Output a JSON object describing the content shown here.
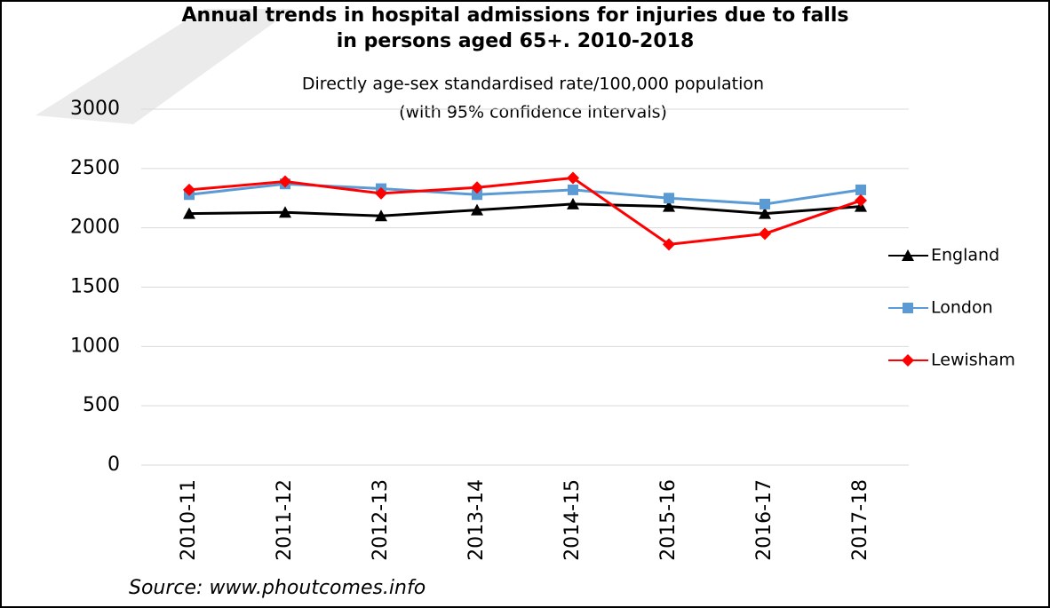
{
  "chart_data": {
    "type": "line",
    "title": [
      "Annual trends in hospital admissions for injuries due to falls",
      "in persons aged 65+. 2010-2018"
    ],
    "subtitle": [
      "Directly age-sex standardised rate/100,000 population",
      "(with 95% confidence intervals)"
    ],
    "source": "Source: www.phoutcomes.info",
    "categories": [
      "2010-11",
      "2011-12",
      "2012-13",
      "2013-14",
      "2014-15",
      "2015-16",
      "2016-17",
      "2017-18"
    ],
    "series": [
      {
        "name": "England",
        "color": "#000000",
        "marker": "triangle",
        "values": [
          2120,
          2130,
          2100,
          2150,
          2200,
          2180,
          2120,
          2180
        ]
      },
      {
        "name": "London",
        "color": "#5b9bd5",
        "marker": "square",
        "values": [
          2280,
          2370,
          2330,
          2280,
          2320,
          2250,
          2200,
          2320
        ]
      },
      {
        "name": "Lewisham",
        "color": "#ff0000",
        "marker": "diamond",
        "values": [
          2320,
          2390,
          2290,
          2340,
          2420,
          1860,
          1950,
          2230
        ]
      }
    ],
    "ylim": [
      0,
      3000
    ],
    "yticks": [
      0,
      500,
      1000,
      1500,
      2000,
      2500,
      3000
    ],
    "grid": true,
    "legend": "right"
  }
}
